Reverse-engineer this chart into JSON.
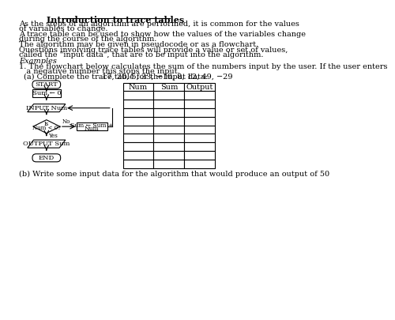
{
  "title": "Introduction to trace tables",
  "para1": "As the steps of an algorithm are performed, it is common for the values of variables to change.",
  "para2": "A trace table can be used to show how the values of the variables change during the course of the algorithm.",
  "para3": "The algorithm may be given in pseudocode or as a flowchart.",
  "para4": "Questions involving trace tables will provide a value or set of values, called the \"input data\", that are to be input into the algorithm.",
  "examples_label": "Examples",
  "q1_line1": "1. The flowchart below calculates the sum of the numbers input by the user. If the user enters",
  "q1_line2": "   a negative number this stops the input.",
  "q1a": "(a) Complete the trace table for the input data:",
  "input_data": "17, 20, 5, 33, −10, 8, 12, 49, −29",
  "table_headers": [
    "Num",
    "Sum",
    "Output"
  ],
  "q1b": "(b) Write some input data for the algorithm that would produce an output of 50",
  "bg_color": "#ffffff",
  "text_color": "#000000",
  "font_size": 7,
  "title_font_size": 8
}
